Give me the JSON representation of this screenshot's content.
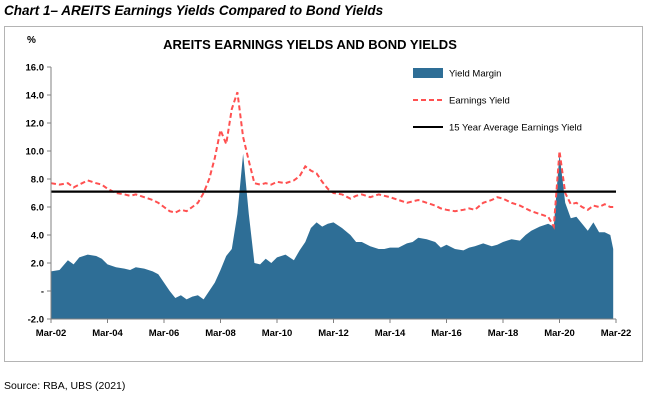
{
  "page": {
    "title": "Chart 1– AREITS Earnings Yields Compared to Bond Yields",
    "source": "Source: RBA, UBS (2021)"
  },
  "chart_data": {
    "type": "area",
    "title": "AREITS EARNINGS YIELDS AND BOND YIELDS",
    "ylabel": "%",
    "xlabel": "",
    "ylim": [
      -2,
      16
    ],
    "xlim": [
      2002,
      2022
    ],
    "yticks": [
      -2,
      0,
      2,
      4,
      6,
      8,
      10,
      12,
      14,
      16
    ],
    "ytick_labels": [
      "-2.0",
      "-",
      "2.0",
      "4.0",
      "6.0",
      "8.0",
      "10.0",
      "12.0",
      "14.0",
      "16.0"
    ],
    "xticks": [
      2002,
      2004,
      2006,
      2008,
      2010,
      2012,
      2014,
      2016,
      2018,
      2020,
      2022
    ],
    "xtick_labels": [
      "Mar-02",
      "Mar-04",
      "Mar-06",
      "Mar-08",
      "Mar-10",
      "Mar-12",
      "Mar-14",
      "Mar-16",
      "Mar-18",
      "Mar-20",
      "Mar-22"
    ],
    "grid": false,
    "legend_position": "top-right",
    "series": [
      {
        "name": "Yield Margin",
        "type": "area",
        "color": "#2e6e96",
        "points": [
          [
            2002.0,
            1.4
          ],
          [
            2002.3,
            1.5
          ],
          [
            2002.6,
            2.2
          ],
          [
            2002.8,
            1.9
          ],
          [
            2003.0,
            2.4
          ],
          [
            2003.3,
            2.6
          ],
          [
            2003.6,
            2.5
          ],
          [
            2003.8,
            2.3
          ],
          [
            2004.0,
            1.9
          ],
          [
            2004.3,
            1.7
          ],
          [
            2004.6,
            1.6
          ],
          [
            2004.8,
            1.5
          ],
          [
            2005.0,
            1.7
          ],
          [
            2005.3,
            1.6
          ],
          [
            2005.6,
            1.4
          ],
          [
            2005.8,
            1.2
          ],
          [
            2006.0,
            0.6
          ],
          [
            2006.2,
            0.0
          ],
          [
            2006.4,
            -0.5
          ],
          [
            2006.6,
            -0.3
          ],
          [
            2006.8,
            -0.6
          ],
          [
            2007.0,
            -0.4
          ],
          [
            2007.2,
            -0.3
          ],
          [
            2007.4,
            -0.6
          ],
          [
            2007.6,
            0.0
          ],
          [
            2007.8,
            0.6
          ],
          [
            2008.0,
            1.5
          ],
          [
            2008.2,
            2.5
          ],
          [
            2008.4,
            3.0
          ],
          [
            2008.6,
            5.5
          ],
          [
            2008.8,
            9.8
          ],
          [
            2009.0,
            5.5
          ],
          [
            2009.2,
            2.0
          ],
          [
            2009.4,
            1.9
          ],
          [
            2009.6,
            2.3
          ],
          [
            2009.8,
            2.0
          ],
          [
            2010.0,
            2.4
          ],
          [
            2010.3,
            2.6
          ],
          [
            2010.6,
            2.2
          ],
          [
            2010.8,
            2.9
          ],
          [
            2011.0,
            3.5
          ],
          [
            2011.2,
            4.5
          ],
          [
            2011.4,
            4.9
          ],
          [
            2011.6,
            4.6
          ],
          [
            2011.8,
            4.8
          ],
          [
            2012.0,
            4.9
          ],
          [
            2012.3,
            4.5
          ],
          [
            2012.6,
            4.0
          ],
          [
            2012.8,
            3.5
          ],
          [
            2013.0,
            3.5
          ],
          [
            2013.3,
            3.2
          ],
          [
            2013.6,
            3.0
          ],
          [
            2013.8,
            3.0
          ],
          [
            2014.0,
            3.1
          ],
          [
            2014.3,
            3.1
          ],
          [
            2014.6,
            3.4
          ],
          [
            2014.8,
            3.5
          ],
          [
            2015.0,
            3.8
          ],
          [
            2015.3,
            3.7
          ],
          [
            2015.6,
            3.5
          ],
          [
            2015.8,
            3.1
          ],
          [
            2016.0,
            3.3
          ],
          [
            2016.3,
            3.0
          ],
          [
            2016.6,
            2.9
          ],
          [
            2016.8,
            3.1
          ],
          [
            2017.0,
            3.2
          ],
          [
            2017.3,
            3.4
          ],
          [
            2017.6,
            3.2
          ],
          [
            2017.8,
            3.3
          ],
          [
            2018.0,
            3.5
          ],
          [
            2018.3,
            3.7
          ],
          [
            2018.6,
            3.6
          ],
          [
            2018.8,
            4.0
          ],
          [
            2019.0,
            4.3
          ],
          [
            2019.3,
            4.6
          ],
          [
            2019.6,
            4.8
          ],
          [
            2019.8,
            4.6
          ],
          [
            2020.0,
            9.8
          ],
          [
            2020.2,
            6.3
          ],
          [
            2020.4,
            5.2
          ],
          [
            2020.6,
            5.3
          ],
          [
            2020.8,
            4.8
          ],
          [
            2021.0,
            4.3
          ],
          [
            2021.2,
            4.9
          ],
          [
            2021.4,
            4.2
          ],
          [
            2021.6,
            4.2
          ],
          [
            2021.8,
            4.0
          ],
          [
            2021.9,
            3.0
          ]
        ]
      },
      {
        "name": "Earnings Yield",
        "type": "line",
        "style": "dashed",
        "color": "#ff5050",
        "points": [
          [
            2002.0,
            7.7
          ],
          [
            2002.3,
            7.6
          ],
          [
            2002.6,
            7.7
          ],
          [
            2002.8,
            7.4
          ],
          [
            2003.0,
            7.6
          ],
          [
            2003.3,
            7.9
          ],
          [
            2003.6,
            7.7
          ],
          [
            2003.8,
            7.6
          ],
          [
            2004.0,
            7.3
          ],
          [
            2004.3,
            7.0
          ],
          [
            2004.6,
            6.9
          ],
          [
            2004.8,
            6.8
          ],
          [
            2005.0,
            6.9
          ],
          [
            2005.3,
            6.7
          ],
          [
            2005.6,
            6.5
          ],
          [
            2005.8,
            6.3
          ],
          [
            2006.0,
            6.0
          ],
          [
            2006.2,
            5.7
          ],
          [
            2006.4,
            5.6
          ],
          [
            2006.6,
            5.8
          ],
          [
            2006.8,
            5.7
          ],
          [
            2007.0,
            6.0
          ],
          [
            2007.2,
            6.3
          ],
          [
            2007.4,
            7.0
          ],
          [
            2007.6,
            8.0
          ],
          [
            2007.8,
            9.5
          ],
          [
            2008.0,
            11.5
          ],
          [
            2008.2,
            10.5
          ],
          [
            2008.4,
            13.0
          ],
          [
            2008.6,
            14.2
          ],
          [
            2008.8,
            11.0
          ],
          [
            2009.0,
            9.3
          ],
          [
            2009.2,
            7.7
          ],
          [
            2009.4,
            7.6
          ],
          [
            2009.6,
            7.7
          ],
          [
            2009.8,
            7.6
          ],
          [
            2010.0,
            7.8
          ],
          [
            2010.3,
            7.7
          ],
          [
            2010.6,
            7.9
          ],
          [
            2010.8,
            8.2
          ],
          [
            2011.0,
            8.9
          ],
          [
            2011.2,
            8.6
          ],
          [
            2011.4,
            8.4
          ],
          [
            2011.6,
            7.8
          ],
          [
            2011.8,
            7.3
          ],
          [
            2012.0,
            7.0
          ],
          [
            2012.3,
            6.9
          ],
          [
            2012.6,
            6.6
          ],
          [
            2012.8,
            6.8
          ],
          [
            2013.0,
            6.9
          ],
          [
            2013.3,
            6.7
          ],
          [
            2013.6,
            6.9
          ],
          [
            2013.8,
            6.8
          ],
          [
            2014.0,
            6.7
          ],
          [
            2014.3,
            6.5
          ],
          [
            2014.6,
            6.3
          ],
          [
            2014.8,
            6.4
          ],
          [
            2015.0,
            6.5
          ],
          [
            2015.3,
            6.3
          ],
          [
            2015.6,
            6.1
          ],
          [
            2015.8,
            5.9
          ],
          [
            2016.0,
            5.8
          ],
          [
            2016.3,
            5.7
          ],
          [
            2016.6,
            5.8
          ],
          [
            2016.8,
            5.9
          ],
          [
            2017.0,
            5.8
          ],
          [
            2017.3,
            6.3
          ],
          [
            2017.6,
            6.5
          ],
          [
            2017.8,
            6.7
          ],
          [
            2018.0,
            6.6
          ],
          [
            2018.3,
            6.3
          ],
          [
            2018.6,
            6.1
          ],
          [
            2018.8,
            5.9
          ],
          [
            2019.0,
            5.7
          ],
          [
            2019.3,
            5.5
          ],
          [
            2019.6,
            5.3
          ],
          [
            2019.8,
            4.6
          ],
          [
            2020.0,
            10.0
          ],
          [
            2020.2,
            7.0
          ],
          [
            2020.4,
            6.2
          ],
          [
            2020.6,
            6.3
          ],
          [
            2020.8,
            6.0
          ],
          [
            2021.0,
            5.8
          ],
          [
            2021.2,
            6.1
          ],
          [
            2021.4,
            6.0
          ],
          [
            2021.6,
            6.2
          ],
          [
            2021.8,
            6.0
          ],
          [
            2021.9,
            6.0
          ]
        ]
      },
      {
        "name": "15 Year Average Earnings Yield",
        "type": "line",
        "style": "solid",
        "color": "#000000",
        "points": [
          [
            2002.0,
            7.1
          ],
          [
            2022.0,
            7.1
          ]
        ]
      }
    ]
  }
}
